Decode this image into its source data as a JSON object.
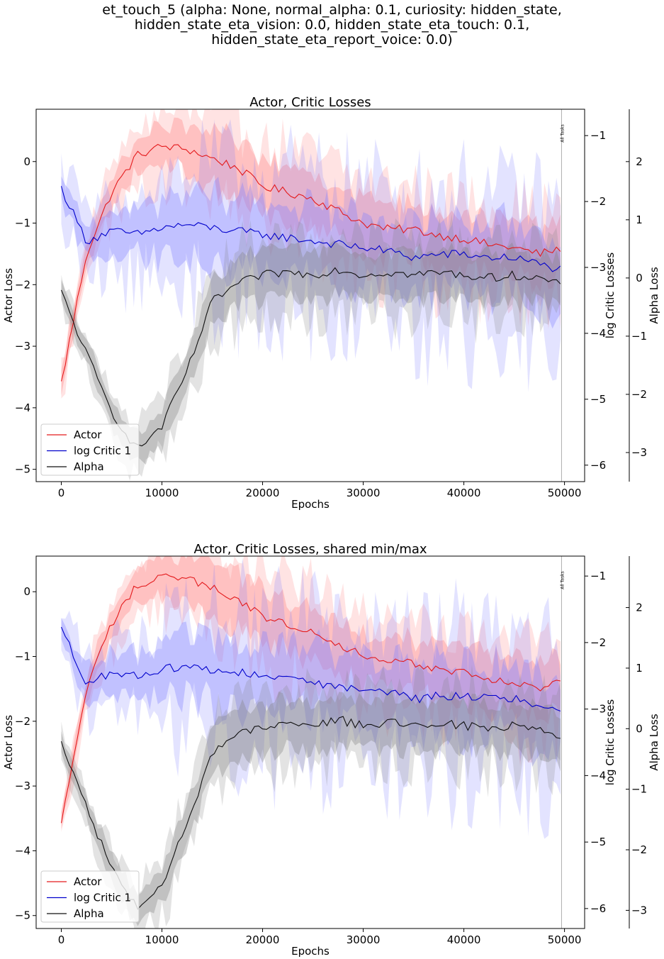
{
  "figure": {
    "suptitle_lines": [
      "et_touch_5 (alpha: None, normal_alpha: 0.1, curiosity: hidden_state,",
      "hidden_state_eta_vision: 0.0, hidden_state_eta_touch: 0.1,",
      "hidden_state_eta_report_voice: 0.0)"
    ]
  },
  "colors": {
    "actor": "#e41a1c",
    "critic": "#0000cc",
    "alpha": "#111111",
    "actor_band": "#ff8080",
    "critic_band": "#8080ff",
    "alpha_band": "#808080"
  },
  "chart_data": [
    {
      "type": "line",
      "title": "Actor, Critic Losses",
      "xlabel": "Epochs",
      "ylabel_left": "Actor Loss",
      "ylabel_right": "log Critic Losses",
      "ylabel_right2": "Alpha Loss",
      "xlim": [
        -2500,
        52000
      ],
      "xticks": [
        0,
        10000,
        20000,
        30000,
        40000,
        50000
      ],
      "ylim": [
        -5.2,
        0.85
      ],
      "yticks": [
        0,
        -1,
        -2,
        -3,
        -4,
        -5
      ],
      "ylim_right": [
        -6.25,
        -0.6
      ],
      "yticks_right": [
        -1,
        -2,
        -3,
        -4,
        -5,
        -6
      ],
      "ylim_right2": [
        -3.5,
        2.9
      ],
      "yticks_right2": [
        2,
        1,
        0,
        -1,
        -2,
        -3
      ],
      "vline": {
        "x": 49700,
        "label": "All Tasks"
      },
      "legend": {
        "position": "lower-left",
        "entries": [
          "Actor",
          "log Critic 1",
          "Alpha"
        ]
      },
      "series": [
        {
          "name": "Actor",
          "axis": "left",
          "color": "#e41a1c",
          "x": [
            0,
            2500,
            5000,
            7500,
            10000,
            12500,
            15000,
            17500,
            20000,
            22500,
            25000,
            27500,
            30000,
            32500,
            35000,
            37500,
            40000,
            42500,
            45000,
            47500,
            50000
          ],
          "y": [
            -3.6,
            -1.5,
            -0.5,
            0.1,
            0.25,
            0.2,
            0.05,
            -0.1,
            -0.4,
            -0.5,
            -0.6,
            -0.8,
            -1.0,
            -1.1,
            -1.1,
            -1.2,
            -1.25,
            -1.35,
            -1.4,
            -1.5,
            -1.4
          ]
        },
        {
          "name": "log Critic 1",
          "axis": "right",
          "color": "#0000cc",
          "x": [
            0,
            2500,
            5000,
            7500,
            10000,
            12500,
            15000,
            17500,
            20000,
            22500,
            25000,
            27500,
            30000,
            32500,
            35000,
            37500,
            40000,
            42500,
            45000,
            47500,
            50000
          ],
          "y": [
            -1.8,
            -2.6,
            -2.45,
            -2.5,
            -2.4,
            -2.35,
            -2.4,
            -2.45,
            -2.5,
            -2.55,
            -2.6,
            -2.65,
            -2.7,
            -2.75,
            -2.85,
            -2.8,
            -2.8,
            -2.85,
            -2.85,
            -2.95,
            -3.05
          ]
        },
        {
          "name": "Alpha",
          "axis": "right2",
          "color": "#111111",
          "x": [
            0,
            2500,
            5000,
            7500,
            10000,
            12500,
            15000,
            17500,
            20000,
            22500,
            25000,
            27500,
            30000,
            32500,
            35000,
            37500,
            40000,
            42500,
            45000,
            47500,
            50000
          ],
          "y": [
            -0.25,
            -1.3,
            -2.3,
            -2.95,
            -2.55,
            -1.6,
            -0.4,
            -0.1,
            0.05,
            0.1,
            0.05,
            0.15,
            0.05,
            0.1,
            0.05,
            0.1,
            0.05,
            0.0,
            0.05,
            0.0,
            -0.15
          ]
        }
      ]
    },
    {
      "type": "line",
      "title": "Actor, Critic Losses, shared min/max",
      "xlabel": "Epochs",
      "ylabel_left": "Actor Loss",
      "ylabel_right": "log Critic Losses",
      "ylabel_right2": "Alpha Loss",
      "xlim": [
        -2500,
        52000
      ],
      "xticks": [
        0,
        10000,
        20000,
        30000,
        40000,
        50000
      ],
      "ylim": [
        -5.2,
        0.55
      ],
      "yticks": [
        0,
        -1,
        -2,
        -3,
        -4,
        -5
      ],
      "ylim_right": [
        -6.3,
        -0.7
      ],
      "yticks_right": [
        -1,
        -2,
        -3,
        -4,
        -5,
        -6
      ],
      "ylim_right2": [
        -3.3,
        2.85
      ],
      "yticks_right2": [
        2,
        1,
        0,
        -1,
        -2,
        -3
      ],
      "vline": {
        "x": 49700,
        "label": "All Tasks"
      },
      "legend": {
        "position": "lower-left",
        "entries": [
          "Actor",
          "log Critic 1",
          "Alpha"
        ]
      },
      "series": [
        {
          "name": "Actor",
          "axis": "left",
          "color": "#e41a1c",
          "x": [
            0,
            2500,
            5000,
            7500,
            10000,
            12500,
            15000,
            17500,
            20000,
            22500,
            25000,
            27500,
            30000,
            32500,
            35000,
            37500,
            40000,
            42500,
            45000,
            47500,
            50000
          ],
          "y": [
            -3.6,
            -1.5,
            -0.5,
            0.1,
            0.25,
            0.2,
            0.05,
            -0.1,
            -0.4,
            -0.5,
            -0.6,
            -0.8,
            -1.0,
            -1.1,
            -1.1,
            -1.2,
            -1.25,
            -1.35,
            -1.4,
            -1.5,
            -1.4
          ]
        },
        {
          "name": "log Critic 1",
          "axis": "right",
          "color": "#0000cc",
          "x": [
            0,
            2500,
            5000,
            7500,
            10000,
            12500,
            15000,
            17500,
            20000,
            22500,
            25000,
            27500,
            30000,
            32500,
            35000,
            37500,
            40000,
            42500,
            45000,
            47500,
            50000
          ],
          "y": [
            -1.8,
            -2.6,
            -2.45,
            -2.5,
            -2.4,
            -2.35,
            -2.4,
            -2.45,
            -2.5,
            -2.55,
            -2.6,
            -2.65,
            -2.7,
            -2.75,
            -2.85,
            -2.8,
            -2.8,
            -2.85,
            -2.85,
            -2.95,
            -3.05
          ]
        },
        {
          "name": "Alpha",
          "axis": "right2",
          "color": "#111111",
          "x": [
            0,
            2500,
            5000,
            7500,
            10000,
            12500,
            15000,
            17500,
            20000,
            22500,
            25000,
            27500,
            30000,
            32500,
            35000,
            37500,
            40000,
            42500,
            45000,
            47500,
            50000
          ],
          "y": [
            -0.25,
            -1.3,
            -2.3,
            -2.95,
            -2.55,
            -1.6,
            -0.4,
            -0.1,
            0.05,
            0.1,
            0.05,
            0.15,
            0.05,
            0.1,
            0.05,
            0.1,
            0.05,
            0.0,
            0.05,
            0.0,
            -0.15
          ]
        }
      ]
    }
  ]
}
